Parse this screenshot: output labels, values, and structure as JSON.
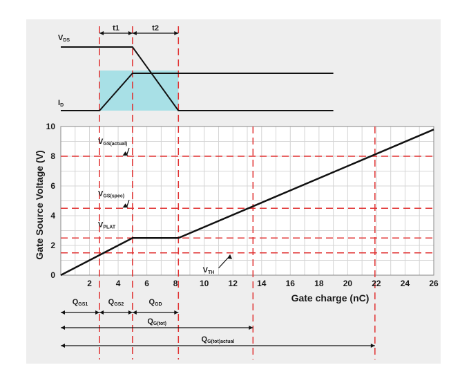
{
  "colors": {
    "background": "#eeeeee",
    "plot_bg": "#ffffff",
    "curve": "#111111",
    "guide": "#e03030",
    "highlight": "#a8e0e6",
    "grid": "#d4d4d4"
  },
  "chart_data": {
    "type": "line",
    "xlabel": "Gate charge (nC)",
    "ylabel": "Gate Source Voltage (V)",
    "xlim": [
      0,
      26
    ],
    "ylim": [
      0,
      10
    ],
    "xticks": [
      2,
      4,
      6,
      8,
      10,
      12,
      14,
      16,
      18,
      20,
      22,
      24,
      26
    ],
    "yticks": [
      0,
      2,
      4,
      6,
      8,
      10
    ],
    "grid": true,
    "series": [
      {
        "name": "",
        "x": [
          0,
          5,
          8.2,
          26
        ],
        "y": [
          0,
          2.5,
          2.5,
          9.8
        ]
      }
    ],
    "vertical_markers": [
      2.7,
      5,
      8.2,
      13.4,
      21.9
    ],
    "horizontal_markers": [
      8,
      4.5,
      2.5,
      1.5
    ],
    "level_labels": [
      {
        "main": "V",
        "sub": "GS(actual)",
        "y": 8,
        "x": 2.6
      },
      {
        "main": "V",
        "sub": "GS(spec)",
        "y": 4.5,
        "x": 2.6
      },
      {
        "main": "V",
        "sub": "PLAT",
        "y": 2.5,
        "x": 2.6
      },
      {
        "main": "V",
        "sub": "TH",
        "y": 1.5,
        "x": 10.2
      }
    ],
    "charge_intervals": [
      {
        "main": "Q",
        "sub": "GS1",
        "from": 0,
        "to": 2.7,
        "row": 1
      },
      {
        "main": "Q",
        "sub": "GS2",
        "from": 2.7,
        "to": 5,
        "row": 1
      },
      {
        "main": "Q",
        "sub": "GD",
        "from": 5,
        "to": 8.2,
        "row": 1
      },
      {
        "main": "Q",
        "sub": "G(tot)",
        "from": 0,
        "to": 13.4,
        "row": 2
      },
      {
        "main": "Q",
        "sub": "G(tot)actual",
        "from": 0,
        "to": 21.9,
        "row": 3
      }
    ],
    "waveforms": {
      "vds_label": {
        "main": "V",
        "sub": "DS"
      },
      "id_label": {
        "main": "I",
        "sub": "D"
      },
      "time_labels": [
        "t1",
        "t2"
      ],
      "vds": {
        "x": [
          0,
          5,
          8.2,
          19
        ],
        "level": [
          "high",
          "high",
          "low",
          "low"
        ]
      },
      "id": {
        "x": [
          0,
          2.7,
          5,
          19
        ],
        "level": [
          "low",
          "low",
          "high",
          "high"
        ]
      }
    }
  }
}
